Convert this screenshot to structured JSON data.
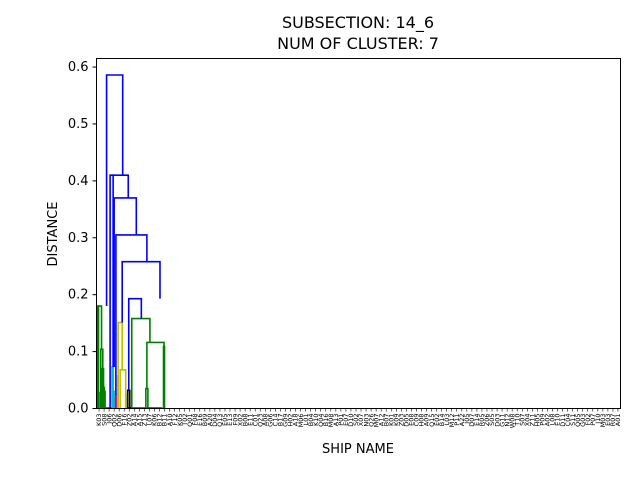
{
  "chart_data": {
    "type": "dendrogram",
    "title_line1": "SUBSECTION: 14_6",
    "title_line2": "NUM OF CLUSTER: 7",
    "xlabel": "SHIP NAME",
    "ylabel": "DISTANCE",
    "ylim": [
      0,
      0.615
    ],
    "yticks": [
      0.0,
      0.1,
      0.2,
      0.3,
      0.4,
      0.5,
      0.6
    ],
    "ytick_labels": [
      "0.0",
      "0.1",
      "0.2",
      "0.3",
      "0.4",
      "0.5",
      "0.6"
    ],
    "leaf_count": 104,
    "leaf_labels": [
      "K03",
      "S08",
      "J06",
      "Q02",
      "D06",
      "F16",
      "Z02",
      "A14",
      "A15",
      "Z13",
      "L07",
      "K06",
      "B12",
      "B11",
      "A10",
      "F12",
      "K05",
      "T02",
      "Q01",
      "F08",
      "E16",
      "B09",
      "A20",
      "D04",
      "Q13",
      "E05",
      "E13",
      "F09",
      "X02",
      "B08",
      "E11",
      "C01",
      "Q23",
      "A08",
      "G06",
      "C14",
      "B17",
      "G09",
      "H02",
      "A18",
      "M06",
      "L01",
      "B04",
      "K10",
      "Q04",
      "B16",
      "M08",
      "A13",
      "P01",
      "E07",
      "D10",
      "S02",
      "X07",
      "N03",
      "Q26",
      "M07",
      "A12",
      "B07",
      "K01",
      "K09",
      "Z03",
      "D05",
      "E08",
      "C09",
      "H08",
      "A09",
      "Q15",
      "E02",
      "B14",
      "L03",
      "M12",
      "P11",
      "A22",
      "J05",
      "D07",
      "E14",
      "R05",
      "Z06",
      "S05",
      "D03",
      "G11",
      "N12",
      "W08",
      "T10",
      "S07",
      "X04",
      "Z11",
      "H05",
      "P09",
      "A02",
      "L08",
      "E10",
      "D11",
      "C04",
      "S11",
      "Q05",
      "G03",
      "F02",
      "P07",
      "J10",
      "M03",
      "E03",
      "R07",
      "A01"
    ],
    "links": [
      {
        "x0": 1.5,
        "x1": 4.0,
        "y0": 0.078,
        "y1": 0.028,
        "y": 0.18,
        "color": "#008000"
      },
      {
        "x0": 1.0,
        "x1": 2.0,
        "y0": 0.0,
        "y1": 0.0,
        "y": 0.078,
        "color": "#008000"
      },
      {
        "x0": 3.0,
        "x1": 5.0,
        "y0": 0.0,
        "y1": 0.0,
        "y": 0.028,
        "color": "#008000"
      },
      {
        "x0": 2.75,
        "x1": 10.0,
        "y0": 0.18,
        "y1": 0.104,
        "y": 0.18,
        "color": "#008000"
      },
      {
        "x0": 8.5,
        "x1": 12.5,
        "y0": 0.0,
        "y1": 0.07,
        "y": 0.104,
        "color": "#008000"
      },
      {
        "x0": 11.0,
        "x1": 14.0,
        "y0": 0.0,
        "y1": 0.037,
        "y": 0.07,
        "color": "#008000"
      },
      {
        "x0": 13.0,
        "x1": 15.5,
        "y0": 0.0,
        "y1": 0.03,
        "y": 0.037,
        "color": "#008000"
      },
      {
        "x0": 15.0,
        "x1": 17.0,
        "y0": 0.0,
        "y1": 0.0,
        "y": 0.03,
        "color": "#008000"
      },
      {
        "x0": 16.0,
        "x1": 23.0,
        "y0": 0.0,
        "y1": 0.0,
        "y": 0.001,
        "color": "#008000"
      },
      {
        "x0": 25.0,
        "x1": 29.0,
        "y0": 0.0,
        "y1": 0.0,
        "y": 0.001,
        "color": "#ff0000"
      },
      {
        "x0": 31.0,
        "x1": 33.0,
        "y0": 0.0,
        "y1": 0.0,
        "y": 0.073,
        "color": "#00bfbf"
      },
      {
        "x0": 33.0,
        "x1": 35.0,
        "y0": 0.0,
        "y1": 0.0,
        "y": 0.03,
        "color": "#00bfbf"
      },
      {
        "x0": 38.0,
        "x1": 39.0,
        "y0": 0.0,
        "y1": 0.0,
        "y": 0.024,
        "color": "#bf00bf"
      },
      {
        "x0": 42.0,
        "x1": 43.0,
        "y0": 0.0,
        "y1": 0.0,
        "y": 0.057,
        "color": "#bfbf00"
      },
      {
        "x0": 43.0,
        "x1": 51.0,
        "y0": 0.0,
        "y1": 0.068,
        "y": 0.151,
        "color": "#bfbf00"
      },
      {
        "x0": 47.0,
        "x1": 58.0,
        "y0": 0.0,
        "y1": 0.0,
        "y": 0.068,
        "color": "#bfbf00"
      },
      {
        "x0": 58.0,
        "x1": 60.0,
        "y0": 0.0,
        "y1": 0.0,
        "y": 0.025,
        "color": "#bfbf00"
      },
      {
        "x0": 62.0,
        "x1": 66.0,
        "y0": 0.0,
        "y1": 0.0,
        "y": 0.032,
        "color": "#000000"
      },
      {
        "x0": 65.0,
        "x1": 69.0,
        "y0": 0.0,
        "y1": 0.0,
        "y": 0.001,
        "color": "#000000"
      },
      {
        "x0": 70.0,
        "x1": 106.0,
        "y0": 0.0,
        "y1": 0.116,
        "y": 0.158,
        "color": "#008000"
      },
      {
        "x0": 72.0,
        "x1": 106.0,
        "y0": 0.0,
        "y1": 0.0,
        "y": 0.001,
        "color": "#008000"
      },
      {
        "x0": 100.0,
        "x1": 134.0,
        "y0": 0.035,
        "y1": 0.109,
        "y": 0.116,
        "color": "#008000"
      },
      {
        "x0": 98.0,
        "x1": 102.0,
        "y0": 0.0,
        "y1": 0.0,
        "y": 0.035,
        "color": "#008000"
      },
      {
        "x0": 102.0,
        "x1": 129.0,
        "y0": 0.0,
        "y1": 0.0,
        "y": 0.001,
        "color": "#008000"
      },
      {
        "x0": 133.0,
        "x1": 135.0,
        "y0": 0.0,
        "y1": 0.0,
        "y": 0.109,
        "color": "#008000"
      },
      {
        "x0": 27.0,
        "x1": 33.0,
        "y0": 0.0,
        "y1": 0.073,
        "y": 0.41,
        "color": "#0000ff"
      },
      {
        "x0": 33.0,
        "x1": 38.5,
        "y0": 0.073,
        "y1": 0.024,
        "y": 0.0,
        "color": "#0000ff",
        "hidden": true
      },
      {
        "x0": 20.0,
        "x1": 52.0,
        "y0": 0.18,
        "y1": 0.41,
        "y": 0.586,
        "color": "#0000ff"
      },
      {
        "x0": 30.0,
        "x1": 63.0,
        "y0": 0.41,
        "y1": 0.37,
        "y": 0.41,
        "color": "#0000ff"
      },
      {
        "x0": 35.0,
        "x1": 79.0,
        "y0": 0.073,
        "y1": 0.305,
        "y": 0.37,
        "color": "#0000ff"
      },
      {
        "x0": 38.5,
        "x1": 100.0,
        "y0": 0.024,
        "y1": 0.258,
        "y": 0.305,
        "color": "#0000ff"
      },
      {
        "x0": 51.0,
        "x1": 126.0,
        "y0": 0.151,
        "y1": 0.193,
        "y": 0.258,
        "color": "#0000ff"
      },
      {
        "x0": 64.0,
        "x1": 89.0,
        "y0": 0.032,
        "y1": 0.158,
        "y": 0.193,
        "color": "#0000ff"
      }
    ]
  }
}
